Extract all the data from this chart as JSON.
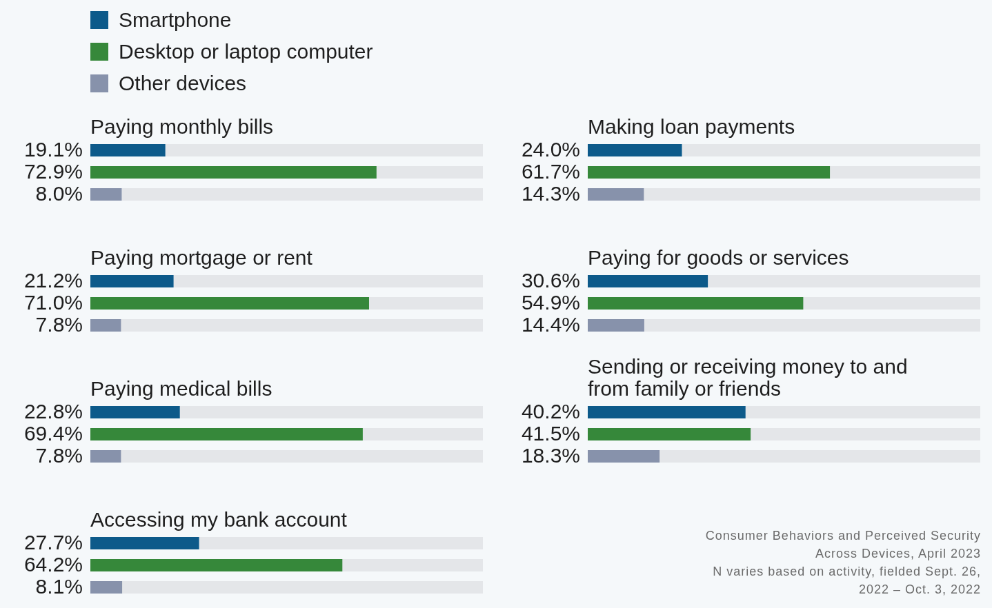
{
  "chart_data": [
    {
      "type": "bar",
      "orientation": "horizontal",
      "stacked": true,
      "title": "Paying monthly bills",
      "categories": [
        null,
        null,
        null
      ],
      "legend": "top",
      "xlim": [
        0,
        100
      ],
      "tick_labels": false,
      "series": [
        {
          "name": "Smartphone",
          "color": "#0d5a8a",
          "values": [
            19.1,
            null,
            null
          ],
          "value_labels": [
            "19.1%",
            null,
            null
          ]
        },
        {
          "name": "Desktop or laptop computer",
          "color": "#36883a",
          "values": [
            null,
            72.9,
            null
          ],
          "value_labels": [
            null,
            "72.9%",
            null
          ]
        },
        {
          "name": "Other devices",
          "color": "#8792ab",
          "values": [
            null,
            null,
            8.0
          ],
          "value_labels": [
            null,
            null,
            "8.0%"
          ]
        }
      ]
    },
    {
      "type": "bar",
      "orientation": "horizontal",
      "stacked": true,
      "title": "Making loan payments",
      "categories": [
        null,
        null,
        null
      ],
      "xlim": [
        0,
        100
      ],
      "tick_labels": false,
      "series": [
        {
          "color": "#0d5a8a",
          "values": [
            24.0,
            null,
            null
          ],
          "value_labels": [
            "24.0%",
            null,
            null
          ]
        },
        {
          "color": "#36883a",
          "values": [
            null,
            61.7,
            null
          ],
          "value_labels": [
            null,
            "61.7%",
            null
          ]
        },
        {
          "color": "#8792ab",
          "values": [
            null,
            null,
            14.3
          ],
          "value_labels": [
            null,
            null,
            "14.3%"
          ]
        }
      ]
    },
    {
      "type": "bar",
      "orientation": "horizontal",
      "stacked": true,
      "title": "Paying mortgage or rent",
      "categories": [
        null,
        null,
        null
      ],
      "xlim": [
        0,
        100
      ],
      "tick_labels": false,
      "series": [
        {
          "color": "#0d5a8a",
          "values": [
            21.2,
            null,
            null
          ],
          "value_labels": [
            "21.2%",
            null,
            null
          ]
        },
        {
          "color": "#36883a",
          "values": [
            null,
            71.0,
            null
          ],
          "value_labels": [
            null,
            "71.0%",
            null
          ]
        },
        {
          "color": "#8792ab",
          "values": [
            null,
            null,
            7.8
          ],
          "value_labels": [
            null,
            null,
            "7.8%"
          ]
        }
      ]
    },
    {
      "type": "bar",
      "orientation": "horizontal",
      "stacked": true,
      "title": "Paying for goods or services",
      "categories": [
        null,
        null,
        null
      ],
      "xlim": [
        0,
        100
      ],
      "tick_labels": false,
      "series": [
        {
          "color": "#0d5a8a",
          "values": [
            30.6,
            null,
            null
          ],
          "value_labels": [
            "30.6%",
            null,
            null
          ]
        },
        {
          "color": "#36883a",
          "values": [
            null,
            54.9,
            null
          ],
          "value_labels": [
            null,
            "54.9%",
            null
          ]
        },
        {
          "color": "#8792ab",
          "values": [
            null,
            null,
            14.4
          ],
          "value_labels": [
            null,
            null,
            "14.4%"
          ]
        }
      ]
    },
    {
      "type": "bar",
      "orientation": "horizontal",
      "stacked": true,
      "title": "Paying medical bills",
      "categories": [
        null,
        null,
        null
      ],
      "xlim": [
        0,
        100
      ],
      "tick_labels": false,
      "series": [
        {
          "color": "#0d5a8a",
          "values": [
            22.8,
            null,
            null
          ],
          "value_labels": [
            "22.8%",
            null,
            null
          ]
        },
        {
          "color": "#36883a",
          "values": [
            null,
            69.4,
            null
          ],
          "value_labels": [
            null,
            "69.4%",
            null
          ]
        },
        {
          "color": "#8792ab",
          "values": [
            null,
            null,
            7.8
          ],
          "value_labels": [
            null,
            null,
            "7.8%"
          ]
        }
      ]
    },
    {
      "type": "bar",
      "orientation": "horizontal",
      "stacked": true,
      "title": "Sending or receiving money to and from family or friends",
      "categories": [
        null,
        null,
        null
      ],
      "xlim": [
        0,
        100
      ],
      "tick_labels": false,
      "series": [
        {
          "color": "#0d5a8a",
          "values": [
            40.2,
            null,
            null
          ],
          "value_labels": [
            "40.2%",
            null,
            null
          ]
        },
        {
          "color": "#36883a",
          "values": [
            null,
            41.5,
            null
          ],
          "value_labels": [
            null,
            "41.5%",
            null
          ]
        },
        {
          "color": "#8792ab",
          "values": [
            null,
            null,
            18.3
          ],
          "value_labels": [
            null,
            null,
            "18.3%"
          ]
        }
      ]
    },
    {
      "type": "bar",
      "orientation": "horizontal",
      "stacked": true,
      "title": "Accessing my bank account",
      "categories": [
        null,
        null,
        null
      ],
      "xlim": [
        0,
        100
      ],
      "tick_labels": false,
      "annotations": [
        "Consumer Behaviors and Perceived Security Across Devices, April 2023",
        "N varies based on activity, fielded Sept. 26, 2022 – Oct. 3, 2022"
      ],
      "series": [
        {
          "color": "#0d5a8a",
          "values": [
            27.7,
            null,
            null
          ],
          "value_labels": [
            "27.7%",
            null,
            null
          ]
        },
        {
          "color": "#36883a",
          "values": [
            null,
            64.2,
            null
          ],
          "value_labels": [
            null,
            "64.2%",
            null
          ]
        },
        {
          "color": "#8792ab",
          "values": [
            null,
            null,
            8.1
          ],
          "value_labels": [
            null,
            null,
            "8.1%"
          ]
        }
      ]
    }
  ]
}
